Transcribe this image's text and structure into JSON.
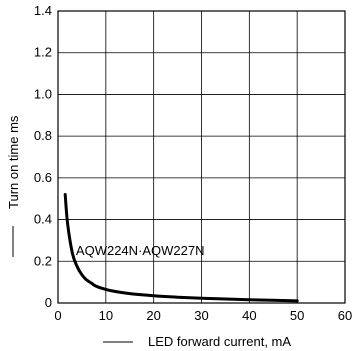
{
  "chart_data": {
    "type": "line",
    "title": "",
    "xlabel": "LED forward current, mA",
    "ylabel": "Turn on time ms",
    "xlim": [
      0,
      60
    ],
    "ylim": [
      0,
      1.4
    ],
    "x_ticks": [
      0,
      10,
      20,
      30,
      40,
      50,
      60
    ],
    "x_tick_labels": [
      "0",
      "10",
      "20",
      "30",
      "40",
      "50",
      "60"
    ],
    "y_ticks": [
      0,
      0.2,
      0.4,
      0.6,
      0.8,
      1.0,
      1.2,
      1.4
    ],
    "y_tick_labels": [
      "0",
      "0.2",
      "0.4",
      "0.6",
      "0.8",
      "1.0",
      "1.2",
      "1.4"
    ],
    "grid": true,
    "annotations": [
      {
        "text": "AQW224N·AQW227N",
        "x": 5,
        "y": 0.25
      }
    ],
    "series": [
      {
        "x": [
          1.5,
          2,
          3,
          4,
          5,
          6,
          7,
          8,
          10,
          12,
          15,
          20,
          25,
          30,
          35,
          40,
          45,
          50
        ],
        "y": [
          0.52,
          0.38,
          0.24,
          0.175,
          0.135,
          0.11,
          0.095,
          0.08,
          0.065,
          0.055,
          0.045,
          0.035,
          0.028,
          0.023,
          0.019,
          0.016,
          0.013,
          0.01
        ]
      }
    ]
  }
}
